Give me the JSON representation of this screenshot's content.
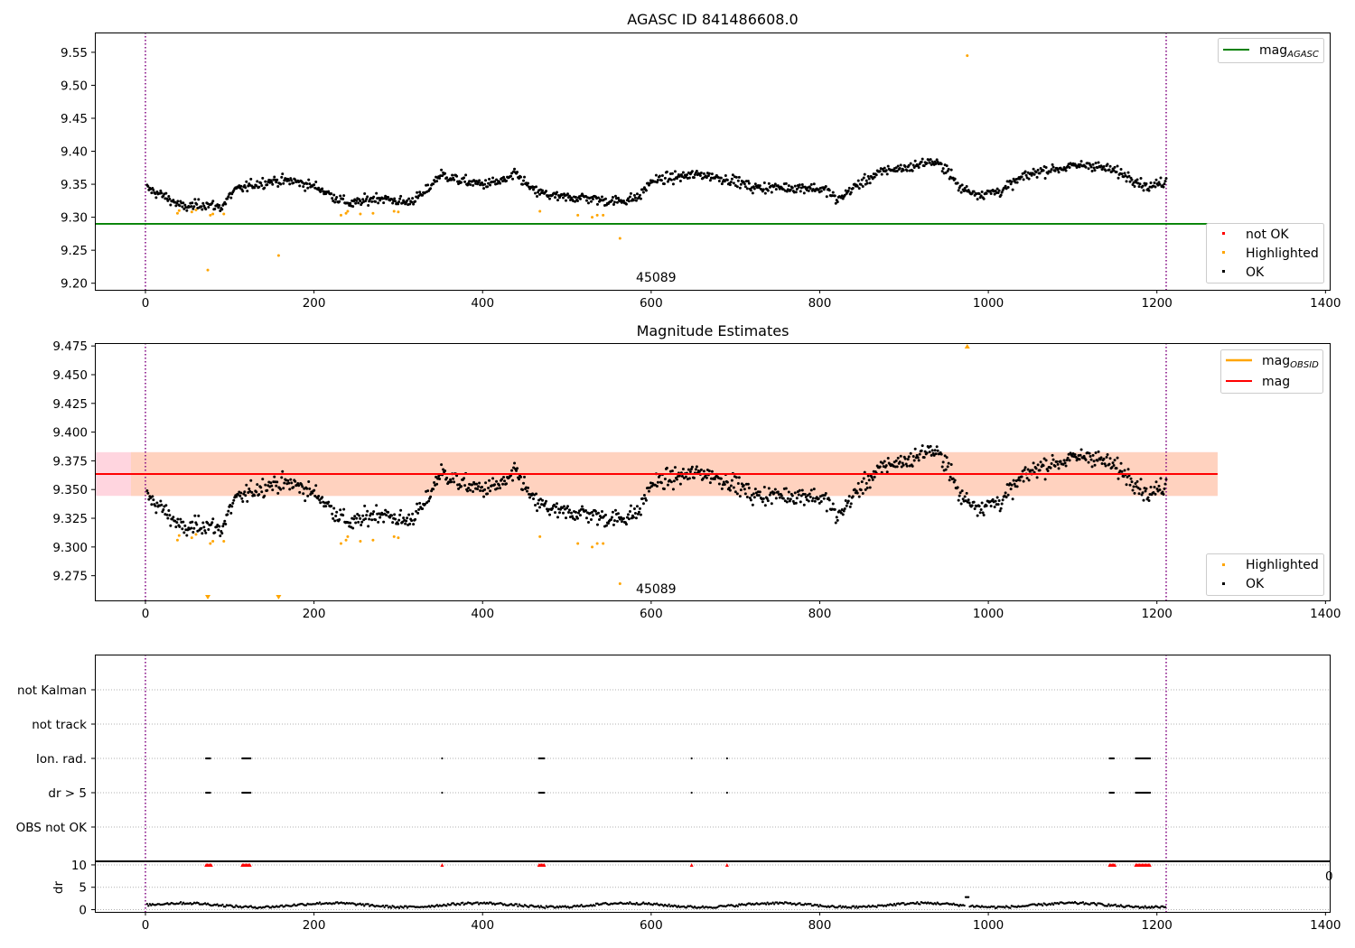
{
  "chart_data": [
    {
      "type": "scatter",
      "title": "AGASC ID 841486608.0",
      "xlim": [
        -60,
        1405
      ],
      "ylim": [
        9.19,
        9.58
      ],
      "x_ticks": [
        "0",
        "200",
        "400",
        "600",
        "800",
        "1000",
        "1200",
        "1400"
      ],
      "y_ticks": [
        "9.20",
        "9.25",
        "9.30",
        "9.35",
        "9.40",
        "9.45",
        "9.50",
        "9.55"
      ],
      "annotation": "45089",
      "vlines": [
        0,
        1211
      ],
      "hline": {
        "value": 9.29,
        "from": -60,
        "to": 1272,
        "color": "#008000"
      },
      "line_legend": [
        {
          "label": "mag",
          "subscript": "AGASC",
          "color": "#008000"
        }
      ],
      "point_legend": [
        {
          "label": "not OK",
          "color": "#ff0000"
        },
        {
          "label": "Highlighted",
          "color": "#ffa500"
        },
        {
          "label": "OK",
          "color": "#000000"
        }
      ],
      "series": [
        {
          "name": "OK",
          "color": "#000000",
          "trend": [
            [
              0,
              9.345
            ],
            [
              25,
              9.33
            ],
            [
              45,
              9.315
            ],
            [
              70,
              9.32
            ],
            [
              90,
              9.315
            ],
            [
              105,
              9.34
            ],
            [
              130,
              9.35
            ],
            [
              150,
              9.355
            ],
            [
              175,
              9.355
            ],
            [
              205,
              9.345
            ],
            [
              225,
              9.33
            ],
            [
              245,
              9.32
            ],
            [
              275,
              9.33
            ],
            [
              310,
              9.322
            ],
            [
              330,
              9.335
            ],
            [
              350,
              9.365
            ],
            [
              375,
              9.355
            ],
            [
              400,
              9.35
            ],
            [
              425,
              9.355
            ],
            [
              440,
              9.365
            ],
            [
              460,
              9.34
            ],
            [
              490,
              9.33
            ],
            [
              520,
              9.33
            ],
            [
              545,
              9.325
            ],
            [
              565,
              9.325
            ],
            [
              585,
              9.33
            ],
            [
              600,
              9.355
            ],
            [
              625,
              9.36
            ],
            [
              660,
              9.365
            ],
            [
              700,
              9.355
            ],
            [
              720,
              9.345
            ],
            [
              760,
              9.345
            ],
            [
              790,
              9.345
            ],
            [
              810,
              9.34
            ],
            [
              820,
              9.325
            ],
            [
              840,
              9.345
            ],
            [
              860,
              9.36
            ],
            [
              880,
              9.372
            ],
            [
              905,
              9.375
            ],
            [
              930,
              9.385
            ],
            [
              950,
              9.375
            ],
            [
              965,
              9.345
            ],
            [
              990,
              9.335
            ],
            [
              1015,
              9.34
            ],
            [
              1040,
              9.36
            ],
            [
              1060,
              9.37
            ],
            [
              1090,
              9.375
            ],
            [
              1120,
              9.38
            ],
            [
              1150,
              9.37
            ],
            [
              1170,
              9.36
            ],
            [
              1190,
              9.345
            ],
            [
              1211,
              9.355
            ]
          ],
          "noise": 0.011,
          "count": 1130
        },
        {
          "name": "Highlighted",
          "color": "#ffa500",
          "points": [
            [
              38,
              9.306
            ],
            [
              40,
              9.31
            ],
            [
              55,
              9.308
            ],
            [
              60,
              9.311
            ],
            [
              74,
              9.22
            ],
            [
              77,
              9.303
            ],
            [
              80,
              9.305
            ],
            [
              93,
              9.305
            ],
            [
              158,
              9.242
            ],
            [
              232,
              9.303
            ],
            [
              238,
              9.306
            ],
            [
              240,
              9.309
            ],
            [
              255,
              9.305
            ],
            [
              270,
              9.306
            ],
            [
              295,
              9.309
            ],
            [
              300,
              9.308
            ],
            [
              468,
              9.309
            ],
            [
              513,
              9.303
            ],
            [
              530,
              9.3
            ],
            [
              536,
              9.303
            ],
            [
              543,
              9.303
            ],
            [
              563,
              9.268
            ],
            [
              975,
              9.545
            ]
          ]
        }
      ]
    },
    {
      "type": "scatter",
      "title": "Magnitude Estimates",
      "xlim": [
        -60,
        1405
      ],
      "ylim": [
        9.2535,
        9.4775
      ],
      "x_ticks": [
        "0",
        "200",
        "400",
        "600",
        "800",
        "1000",
        "1200",
        "1400"
      ],
      "y_ticks": [
        "9.275",
        "9.300",
        "9.325",
        "9.350",
        "9.375",
        "9.400",
        "9.425",
        "9.450",
        "9.475"
      ],
      "annotation": "45089",
      "vlines": [
        0,
        1211
      ],
      "hline": {
        "value": 9.3635,
        "from": -60,
        "to": 1272,
        "color": "#ff0000"
      },
      "band": {
        "low": 9.3445,
        "high": 9.3825,
        "from": -60,
        "to": 1272
      },
      "line_legend": [
        {
          "label": "mag",
          "subscript": "OBSID",
          "color": "#ffa500"
        },
        {
          "label": "mag",
          "subscript": "",
          "color": "#ff0000"
        }
      ],
      "point_legend": [
        {
          "label": "Highlighted",
          "color": "#ffa500"
        },
        {
          "label": "OK",
          "color": "#000000"
        }
      ],
      "offscale_markers": [
        {
          "x": 975,
          "dir": "up"
        },
        {
          "x": 74,
          "dir": "down"
        },
        {
          "x": 158,
          "dir": "down"
        }
      ]
    },
    {
      "type": "scatter",
      "xlim": [
        -60,
        1405
      ],
      "categories": [
        "not Kalman",
        "not track",
        "Ion. rad.",
        "dr > 5",
        "OBS not OK"
      ],
      "vlines": [
        0,
        1211
      ],
      "flag_clusters": [
        [
          72,
          78
        ],
        [
          115,
          125
        ],
        [
          352,
          353
        ],
        [
          467,
          474
        ],
        [
          648,
          649
        ],
        [
          690,
          691
        ],
        [
          1144,
          1150
        ],
        [
          1175,
          1192
        ]
      ],
      "flag_rows": [
        "Ion. rad.",
        "dr > 5"
      ]
    },
    {
      "type": "line",
      "xlim": [
        -60,
        1405
      ],
      "ylim": [
        -0.5,
        11
      ],
      "y_ticks": [
        "0",
        "5",
        "10"
      ],
      "ylabel": "dr",
      "x_ticks": [
        "0",
        "200",
        "400",
        "600",
        "800",
        "1000",
        "1200",
        "1400"
      ],
      "overlap_label": "0",
      "vlines": [
        0,
        1211
      ],
      "series": [
        {
          "name": "dr",
          "color": "#000000",
          "base": 1.0,
          "spike_x": 975,
          "spike_y": 2.8
        }
      ],
      "flag_y": 10
    }
  ]
}
